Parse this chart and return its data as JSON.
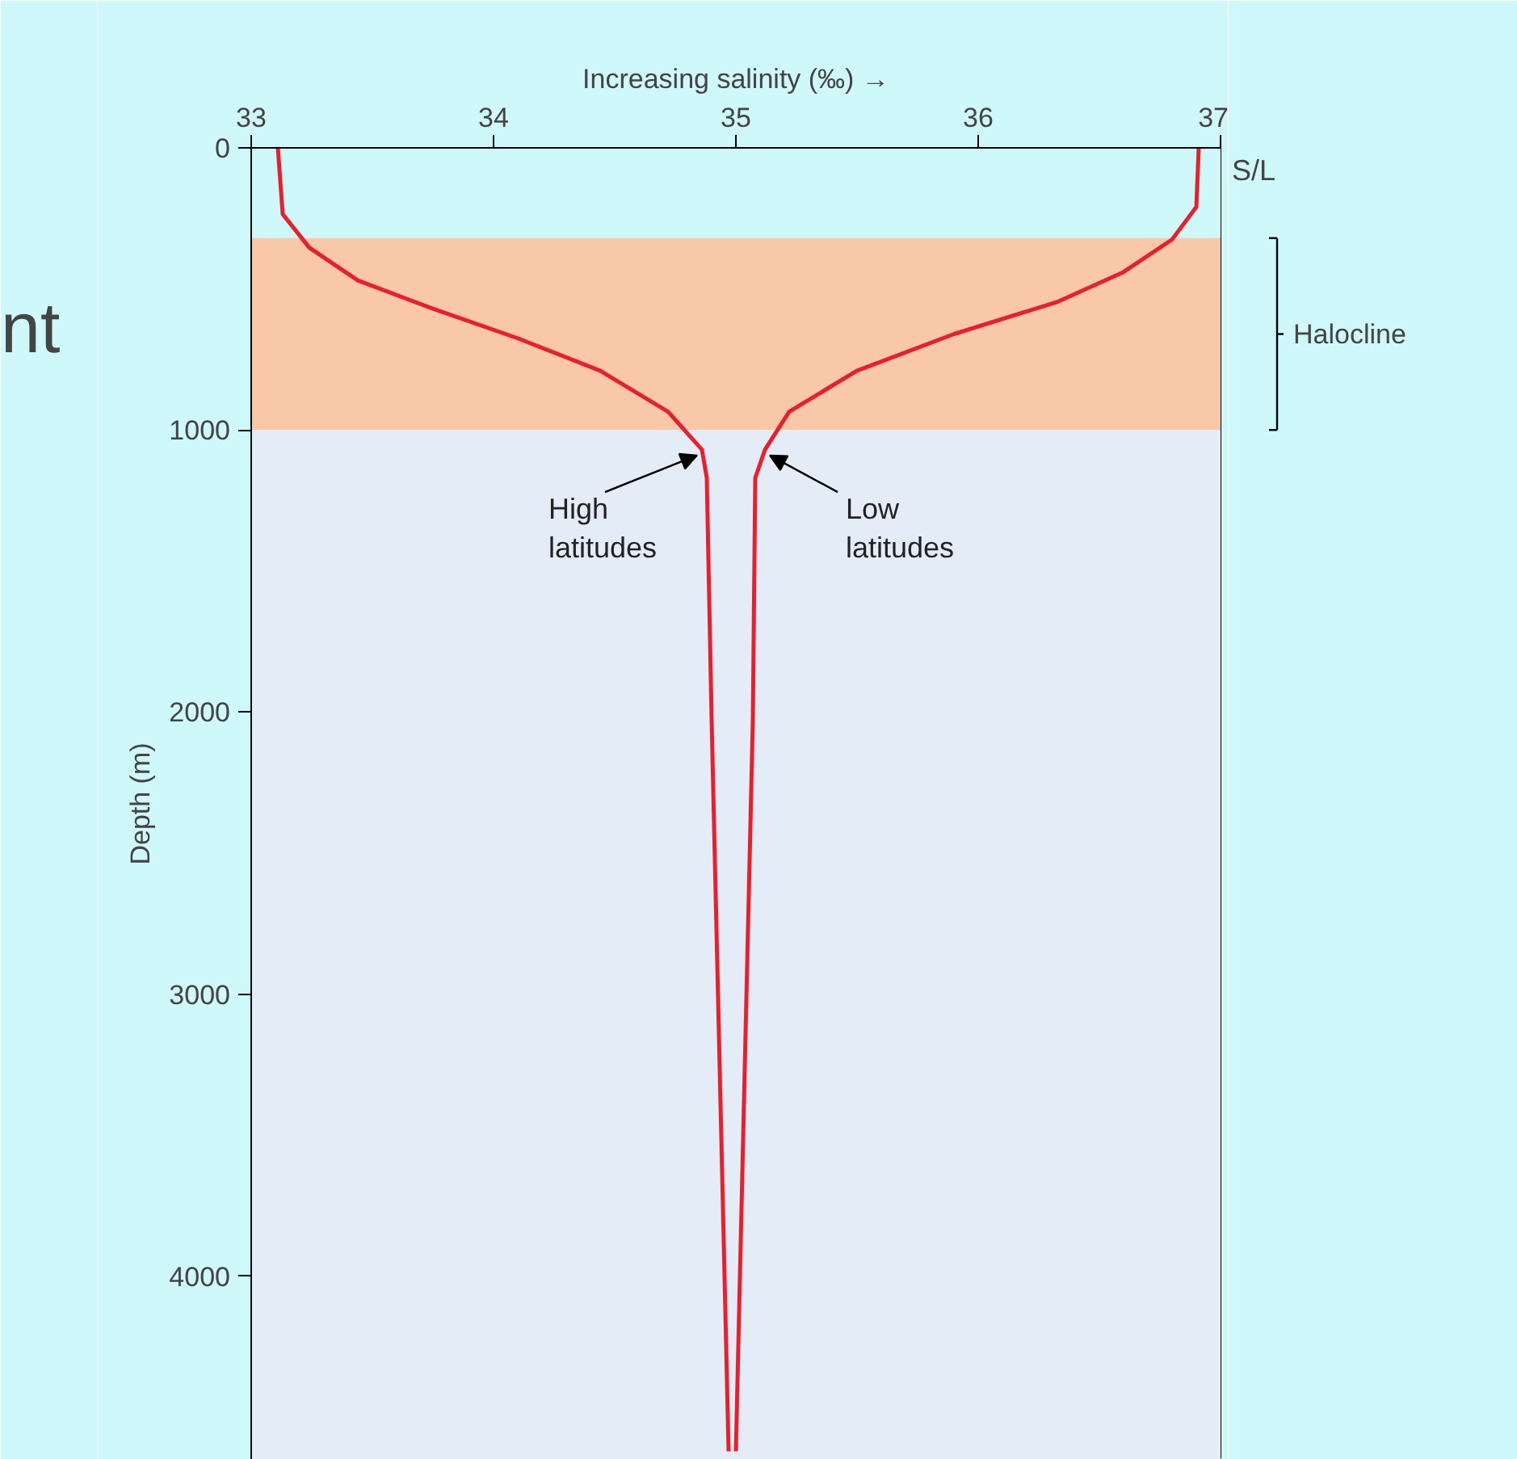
{
  "chart_data": {
    "type": "line",
    "xlabel": "Increasing salinity (‰) →",
    "ylabel": "Depth (m)",
    "xlim": [
      33,
      37
    ],
    "xticks": [
      33,
      34,
      35,
      36,
      37
    ],
    "ylim": [
      4650,
      0
    ],
    "yticks": [
      0,
      1000,
      2000,
      3000,
      4000
    ],
    "series": [
      {
        "color": "#e8202e",
        "x": [
          33.11,
          33.13,
          33.24,
          33.44,
          33.75,
          34.1,
          34.44,
          34.72,
          34.86,
          34.88,
          34.9,
          34.97
        ],
        "values": [
          0,
          235,
          354,
          470,
          570,
          675,
          790,
          935,
          1070,
          1170,
          2030,
          4620
        ]
      },
      {
        "color": "#e8202e",
        "x": [
          36.91,
          36.9,
          36.8,
          36.6,
          36.33,
          35.9,
          35.5,
          35.22,
          35.12,
          35.08,
          35.07,
          35.0
        ],
        "values": [
          0,
          210,
          325,
          440,
          545,
          660,
          790,
          935,
          1070,
          1170,
          2030,
          4620
        ]
      }
    ],
    "bands": [
      {
        "axis": "y",
        "from": 0,
        "to": 320,
        "color": "#cff8fa"
      },
      {
        "axis": "y",
        "from": 320,
        "to": 1000,
        "label": "Halocline",
        "color": "#f9c8a8"
      },
      {
        "axis": "y",
        "from": 1000,
        "to": 4650,
        "color": "#e4ecf8"
      }
    ],
    "annotations": [
      {
        "text": "High\nlatitudes",
        "x": 34.86,
        "y": 1070
      },
      {
        "text": "Low\nlatitudes",
        "x": 35.12,
        "y": 1070
      },
      "S/L",
      "nt"
    ],
    "grid": false,
    "line_style": "solid",
    "marker": "none"
  }
}
